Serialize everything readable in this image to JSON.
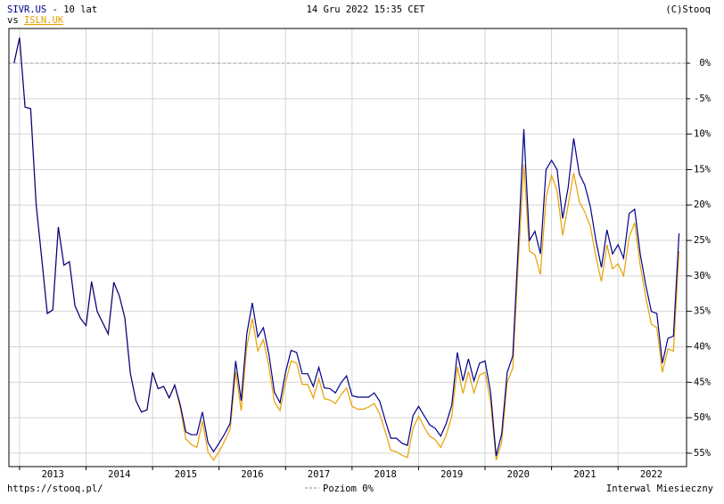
{
  "chart_data": {
    "type": "line",
    "period_label": " - 10 lat",
    "vs_label": "vs ",
    "date_label": "14 Gru 2022 15:35 CET",
    "copyright": "(C)Stooq",
    "source": "https://stooq.pl/",
    "interval_label": "Interwal Miesieczny",
    "reference_line": {
      "value": 0,
      "label": "Poziom 0%"
    },
    "xlim": [
      2012.84,
      2023.03
    ],
    "ylim": [
      -56.9,
      4.9
    ],
    "grid": true,
    "xgrid": [
      2013,
      2014,
      2015,
      2016,
      2017,
      2018,
      2019,
      2020,
      2021,
      2022
    ],
    "xticks": [
      {
        "value": 2013.5,
        "label": "2013"
      },
      {
        "value": 2014.5,
        "label": "2014"
      },
      {
        "value": 2015.5,
        "label": "2015"
      },
      {
        "value": 2016.5,
        "label": "2016"
      },
      {
        "value": 2017.5,
        "label": "2017"
      },
      {
        "value": 2018.5,
        "label": "2018"
      },
      {
        "value": 2019.5,
        "label": "2019"
      },
      {
        "value": 2020.5,
        "label": "2020"
      },
      {
        "value": 2021.5,
        "label": "2021"
      },
      {
        "value": 2022.5,
        "label": "2022"
      }
    ],
    "yticks": [
      {
        "value": 0,
        "label": "0%"
      },
      {
        "value": -5,
        "label": "-5%"
      },
      {
        "value": -10,
        "label": "-10%"
      },
      {
        "value": -15,
        "label": "-15%"
      },
      {
        "value": -20,
        "label": "-20%"
      },
      {
        "value": -25,
        "label": "-25%"
      },
      {
        "value": -30,
        "label": "-30%"
      },
      {
        "value": -35,
        "label": "-35%"
      },
      {
        "value": -40,
        "label": "-40%"
      },
      {
        "value": -45,
        "label": "-45%"
      },
      {
        "value": -50,
        "label": "-50%"
      },
      {
        "value": -55,
        "label": "-55%"
      }
    ],
    "x": [
      2012.917,
      2013.0,
      2013.083,
      2013.167,
      2013.25,
      2013.333,
      2013.417,
      2013.5,
      2013.583,
      2013.667,
      2013.75,
      2013.833,
      2013.917,
      2014.0,
      2014.083,
      2014.167,
      2014.25,
      2014.333,
      2014.417,
      2014.5,
      2014.583,
      2014.667,
      2014.75,
      2014.833,
      2014.917,
      2015.0,
      2015.083,
      2015.167,
      2015.25,
      2015.333,
      2015.417,
      2015.5,
      2015.583,
      2015.667,
      2015.75,
      2015.833,
      2015.917,
      2016.0,
      2016.083,
      2016.167,
      2016.25,
      2016.333,
      2016.417,
      2016.5,
      2016.583,
      2016.667,
      2016.75,
      2016.833,
      2016.917,
      2017.0,
      2017.083,
      2017.167,
      2017.25,
      2017.333,
      2017.417,
      2017.5,
      2017.583,
      2017.667,
      2017.75,
      2017.833,
      2017.917,
      2018.0,
      2018.083,
      2018.167,
      2018.25,
      2018.333,
      2018.417,
      2018.5,
      2018.583,
      2018.667,
      2018.75,
      2018.833,
      2018.917,
      2019.0,
      2019.083,
      2019.167,
      2019.25,
      2019.333,
      2019.417,
      2019.5,
      2019.583,
      2019.667,
      2019.75,
      2019.833,
      2019.917,
      2020.0,
      2020.083,
      2020.167,
      2020.25,
      2020.333,
      2020.417,
      2020.5,
      2020.583,
      2020.667,
      2020.75,
      2020.833,
      2020.917,
      2021.0,
      2021.083,
      2021.167,
      2021.25,
      2021.333,
      2021.417,
      2021.5,
      2021.583,
      2021.667,
      2021.75,
      2021.833,
      2021.917,
      2022.0,
      2022.083,
      2022.167,
      2022.25,
      2022.333,
      2022.417,
      2022.5,
      2022.583,
      2022.667,
      2022.75,
      2022.833,
      2022.917
    ],
    "series": [
      {
        "name": "ISLN.UK",
        "color": "#e8a000",
        "values": [
          0,
          3.6,
          -6.2,
          -6.4,
          -20,
          -27.5,
          -35.3,
          -34.8,
          -23.1,
          -28.5,
          -28,
          -34.2,
          -36,
          -37,
          -30.8,
          -35,
          -36.6,
          -38.2,
          -30.9,
          -32.8,
          -35.9,
          -43.8,
          -47.6,
          -49.2,
          -48.9,
          -43.6,
          -45.9,
          -45.6,
          -47.2,
          -45.4,
          -48.6,
          -53,
          -53.8,
          -54.2,
          -50.5,
          -54.8,
          -56,
          -54.8,
          -53.3,
          -51.6,
          -43.5,
          -49,
          -40,
          -36,
          -40.6,
          -39,
          -42.8,
          -47.8,
          -49,
          -45,
          -42,
          -42.3,
          -45.3,
          -45.3,
          -47.2,
          -44.5,
          -47.3,
          -47.5,
          -48,
          -46.8,
          -45.8,
          -48.4,
          -48.8,
          -48.8,
          -48.5,
          -48,
          -49.5,
          -52,
          -54.6,
          -54.8,
          -55.3,
          -55.6,
          -51.5,
          -49.8,
          -51.3,
          -52.6,
          -53.1,
          -54.2,
          -52.4,
          -49.8,
          -42.8,
          -46.6,
          -43.5,
          -46.5,
          -44,
          -43.6,
          -47.8,
          -56,
          -53.5,
          -45,
          -43,
          -28,
          -14.3,
          -26.5,
          -27,
          -29.8,
          -19,
          -15.8,
          -18,
          -24.3,
          -20,
          -15.5,
          -19.5,
          -21,
          -23,
          -27.3,
          -30.8,
          -25.6,
          -29,
          -28.3,
          -30,
          -24.5,
          -22.5,
          -28.5,
          -33,
          -36.8,
          -37.3,
          -43.6,
          -40.3,
          -40.6,
          -26.5
        ]
      },
      {
        "name": "SIVR.US",
        "color": "#00008b",
        "values": [
          0,
          3.6,
          -6.2,
          -6.4,
          -20,
          -27.5,
          -35.3,
          -34.8,
          -23.1,
          -28.5,
          -28,
          -34.2,
          -36,
          -37,
          -30.8,
          -35,
          -36.6,
          -38.2,
          -30.9,
          -32.8,
          -35.9,
          -43.8,
          -47.6,
          -49.2,
          -48.9,
          -43.6,
          -45.9,
          -45.6,
          -47.2,
          -45.4,
          -48.2,
          -52,
          -52.4,
          -52.4,
          -49.2,
          -53.5,
          -54.8,
          -53.6,
          -52.3,
          -50.8,
          -42,
          -47.6,
          -38.2,
          -33.8,
          -38.6,
          -37.3,
          -41.1,
          -46.4,
          -47.9,
          -43.6,
          -40.5,
          -40.8,
          -43.8,
          -43.8,
          -45.6,
          -42.9,
          -45.8,
          -45.9,
          -46.5,
          -45.1,
          -44.1,
          -46.9,
          -47.1,
          -47.1,
          -47.1,
          -46.5,
          -47.7,
          -50.4,
          -52.9,
          -52.9,
          -53.6,
          -53.9,
          -49.7,
          -48.4,
          -49.7,
          -51,
          -51.5,
          -52.6,
          -50.8,
          -48.2,
          -40.8,
          -44.8,
          -41.7,
          -44.8,
          -42.3,
          -42,
          -46.4,
          -55.4,
          -52.3,
          -43.6,
          -41.3,
          -25.6,
          -9.3,
          -25,
          -23.7,
          -26.9,
          -15,
          -13.7,
          -15,
          -21.9,
          -17.5,
          -10.6,
          -15.6,
          -17.2,
          -20.2,
          -25,
          -28.8,
          -23.5,
          -26.9,
          -25.6,
          -27.5,
          -21.2,
          -20.6,
          -26.9,
          -31.3,
          -35,
          -35.3,
          -42.3,
          -38.8,
          -38.5,
          -24
        ]
      }
    ]
  }
}
